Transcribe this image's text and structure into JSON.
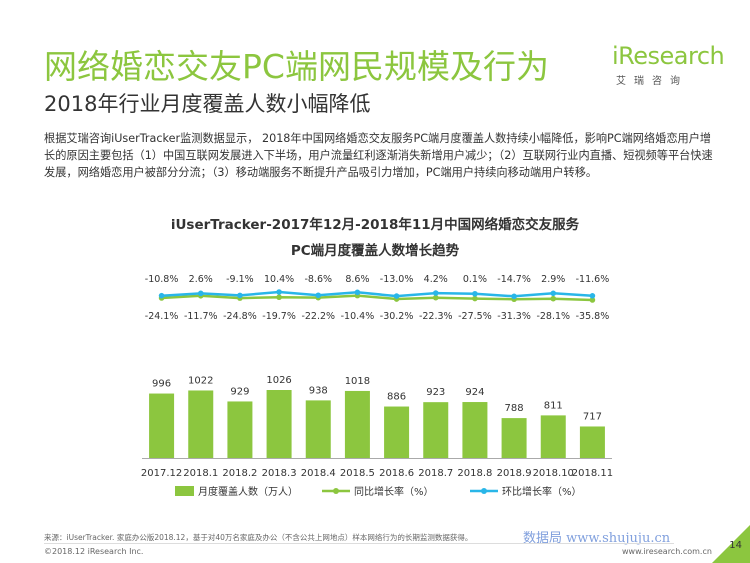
{
  "header": {
    "title": "网络婚恋交友PC端网民规模及行为",
    "subtitle": "2018年行业月度覆盖人数小幅降低",
    "logo_text": "iResearch",
    "logo_sub": "艾瑞咨询"
  },
  "description": "根据艾瑞咨询iUserTracker监测数据显示， 2018年中国网络婚恋交友服务PC端月度覆盖人数持续小幅降低，影响PC端网络婚恋用户增长的原因主要包括（1）中国互联网发展进入下半场，用户流量红利逐渐消失新增用户减少；（2）互联网行业内直播、短视频等平台快速发展，网络婚恋用户被部分分流；（3）移动端服务不断提升产品吸引力增加，PC端用户持续向移动端用户转移。",
  "chart_data": {
    "type": "bar",
    "title_line1": "iUserTracker-2017年12月-2018年11月中国网络婚恋交友服务",
    "title_line2": "PC端月度覆盖人数增长趋势",
    "categories": [
      "2017.12",
      "2018.1",
      "2018.2",
      "2018.3",
      "2018.4",
      "2018.5",
      "2018.6",
      "2018.7",
      "2018.8",
      "2018.9",
      "2018.10",
      "2018.11"
    ],
    "series": [
      {
        "name": "月度覆盖人数（万人）",
        "type": "bar",
        "color": "#8cc63f",
        "values": [
          996,
          1022,
          929,
          1026,
          938,
          1018,
          886,
          923,
          924,
          788,
          811,
          717
        ]
      },
      {
        "name": "同比增长率（%）",
        "type": "line",
        "color": "#8cc63f",
        "values": [
          -24.1,
          -11.7,
          -24.8,
          -19.7,
          -22.2,
          -10.4,
          -30.2,
          -22.3,
          -27.5,
          -31.3,
          -28.1,
          -35.8
        ],
        "labels": [
          "-24.1%",
          "-11.7%",
          "-24.8%",
          "-19.7%",
          "-22.2%",
          "-10.4%",
          "-30.2%",
          "-22.3%",
          "-27.5%",
          "-31.3%",
          "-28.1%",
          "-35.8%"
        ]
      },
      {
        "name": "环比增长率（%）",
        "type": "line",
        "color": "#29b6e8",
        "values": [
          -10.8,
          2.6,
          -9.1,
          10.4,
          -8.6,
          8.6,
          -13.0,
          4.2,
          0.1,
          -14.7,
          2.9,
          -11.6
        ],
        "labels": [
          "-10.8%",
          "2.6%",
          "-9.1%",
          "10.4%",
          "-8.6%",
          "8.6%",
          "-13.0%",
          "4.2%",
          "0.1%",
          "-14.7%",
          "2.9%",
          "-11.6%"
        ]
      }
    ],
    "bar_labels": [
      "996",
      "1022",
      "929",
      "1026",
      "938",
      "1018",
      "886",
      "923",
      "924",
      "788",
      "811",
      "717"
    ],
    "legend_position": "bottom",
    "grid": false
  },
  "footer": {
    "source": "来源：iUserTracker. 家庭办公版2018.12，基于对40万名家庭及办公（不含公共上网地点）样本网络行为的长期监测数据获得。",
    "copyright": "©2018.12 iResearch Inc.",
    "website": "www.iresearch.com.cn",
    "page_number": "14",
    "watermark": "数据局  www.shujuju.cn"
  },
  "colors": {
    "accent": "#8cc63f",
    "line2": "#29b6e8"
  }
}
